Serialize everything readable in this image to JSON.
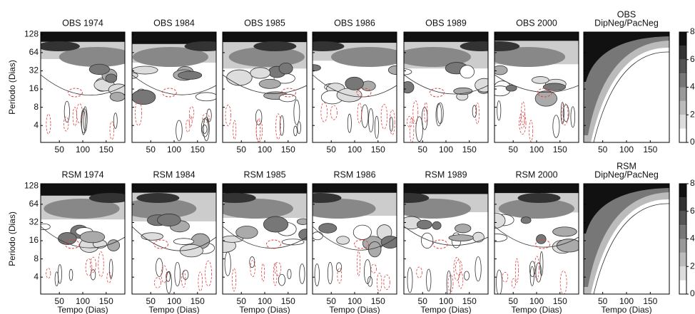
{
  "figure": {
    "ylabel": "Periodo (Dias)",
    "xlabel": "Tempo (Dias)",
    "xlim": [
      10,
      190
    ],
    "xticks": [
      50,
      100,
      150
    ],
    "ylim": [
      2.1,
      140
    ],
    "yscale": "log",
    "yticks": [
      4,
      8,
      16,
      32,
      64,
      128
    ],
    "colorbar": {
      "lim": [
        0,
        8
      ],
      "ticks": [
        0,
        2,
        4,
        6,
        8
      ]
    },
    "rows": [
      {
        "panels": [
          "OBS 1974",
          "OBS 1984",
          "OBS 1985",
          "OBS 1986",
          "OBS 1989",
          "OBS 2000"
        ],
        "composite_title": [
          "OBS",
          "DipNeg/PacNeg"
        ]
      },
      {
        "panels": [
          "RSM 1974",
          "RSM 1984",
          "RSM 1985",
          "RSM 1986",
          "RSM 1989",
          "RSM 2000"
        ],
        "composite_title": [
          "RSM",
          "DipNeg/PacNeg"
        ]
      }
    ]
  }
}
